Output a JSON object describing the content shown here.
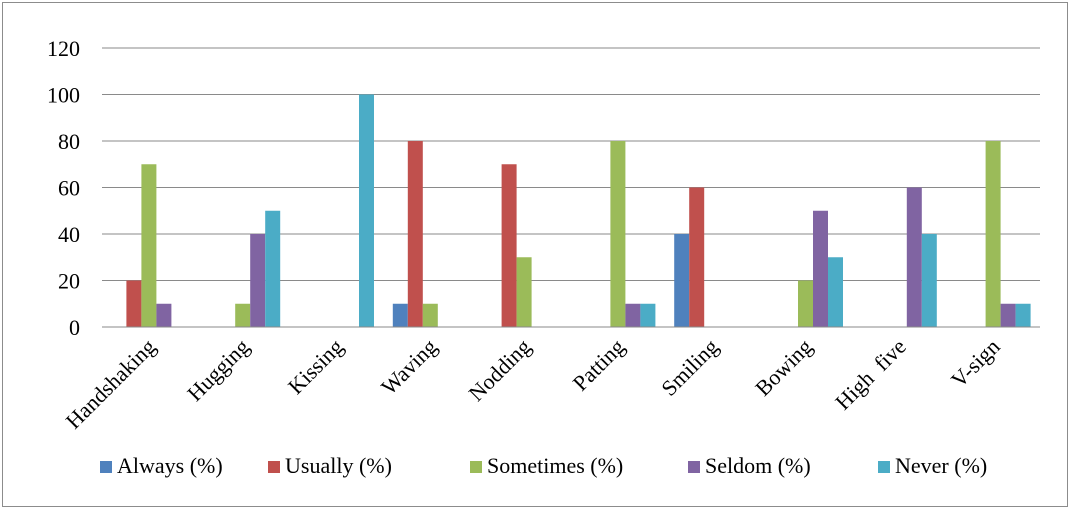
{
  "chart_data": {
    "type": "bar",
    "categories": [
      "Handshaking",
      "Hugging",
      "Kissing",
      "Waving",
      "Nodding",
      "Patting",
      "Smiling",
      "Bowing",
      "High  five",
      "V-sign"
    ],
    "series": [
      {
        "name": "Always (%)",
        "color": "#4f81bd",
        "values": [
          0,
          0,
          0,
          10,
          0,
          0,
          40,
          0,
          0,
          0
        ]
      },
      {
        "name": "Usually (%)",
        "color": "#c0504d",
        "values": [
          20,
          0,
          0,
          80,
          70,
          0,
          60,
          0,
          0,
          0
        ]
      },
      {
        "name": "Sometimes (%)",
        "color": "#9bbb59",
        "values": [
          70,
          10,
          0,
          10,
          30,
          80,
          0,
          20,
          0,
          80
        ]
      },
      {
        "name": "Seldom (%)",
        "color": "#8064a2",
        "values": [
          10,
          40,
          0,
          0,
          0,
          10,
          0,
          50,
          60,
          10
        ]
      },
      {
        "name": "Never (%)",
        "color": "#4bacc6",
        "values": [
          0,
          50,
          100,
          0,
          0,
          10,
          0,
          30,
          40,
          10
        ]
      }
    ],
    "yticks": [
      "0",
      "20",
      "40",
      "60",
      "80",
      "100",
      "120"
    ],
    "ylim": [
      0,
      120
    ],
    "grid": true,
    "legend": "bottom"
  }
}
